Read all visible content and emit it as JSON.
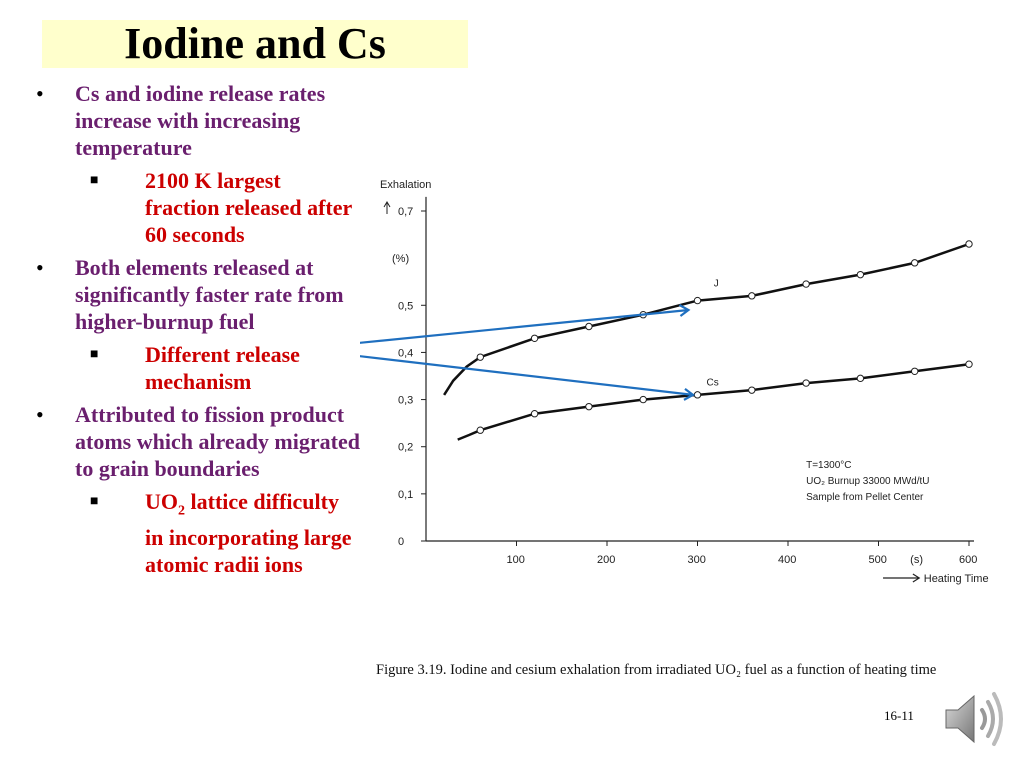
{
  "title": "Iodine and Cs",
  "bullets": [
    {
      "text": "Cs and iodine release rates increase with increasing temperature",
      "sub": [
        {
          "text": "2100 K largest fraction released after 60 seconds"
        }
      ]
    },
    {
      "text": "Both elements released at significantly faster rate from higher-burnup fuel",
      "sub": [
        {
          "text": "Different release mechanism"
        }
      ]
    },
    {
      "text": "Attributed to fission product atoms which already migrated to grain boundaries",
      "sub": [
        {
          "pre": "UO",
          "subscript": "2",
          "post": " lattice difficulty in incorporating large atomic radii ions"
        }
      ]
    }
  ],
  "chart_data": {
    "type": "line",
    "ylabel": "Exhalation",
    "yunit": "(%)",
    "xlabel": "Heating Time",
    "xunit": "(s)",
    "xlim": [
      0,
      600
    ],
    "ylim": [
      0,
      0.7
    ],
    "xticks": [
      "100",
      "200",
      "300",
      "400",
      "500",
      "600"
    ],
    "yticks": [
      "0",
      "0,1",
      "0,2",
      "0,3",
      "0,4",
      "0,5",
      "0,7"
    ],
    "series": [
      {
        "name": "J",
        "x": [
          60,
          120,
          180,
          240,
          300,
          360,
          420,
          480,
          540,
          600
        ],
        "y": [
          0.39,
          0.43,
          0.455,
          0.48,
          0.51,
          0.52,
          0.545,
          0.565,
          0.59,
          0.63
        ]
      },
      {
        "name": "Cs",
        "x": [
          60,
          120,
          180,
          240,
          300,
          360,
          420,
          480,
          540,
          600
        ],
        "y": [
          0.235,
          0.27,
          0.285,
          0.3,
          0.31,
          0.32,
          0.335,
          0.345,
          0.36,
          0.375
        ]
      }
    ],
    "annotation": [
      "T=1300°C",
      "UO₂ Burnup 33000 MWd/tU",
      "Sample from Pellet Center"
    ],
    "arrow_color": "#1f6fbf"
  },
  "caption": "Figure 3.19.  Iodine and cesium exhalation from irradiated UO₂ fuel as a function of heating time",
  "slide_number": "16-11",
  "speaker_icon": "speaker-icon"
}
